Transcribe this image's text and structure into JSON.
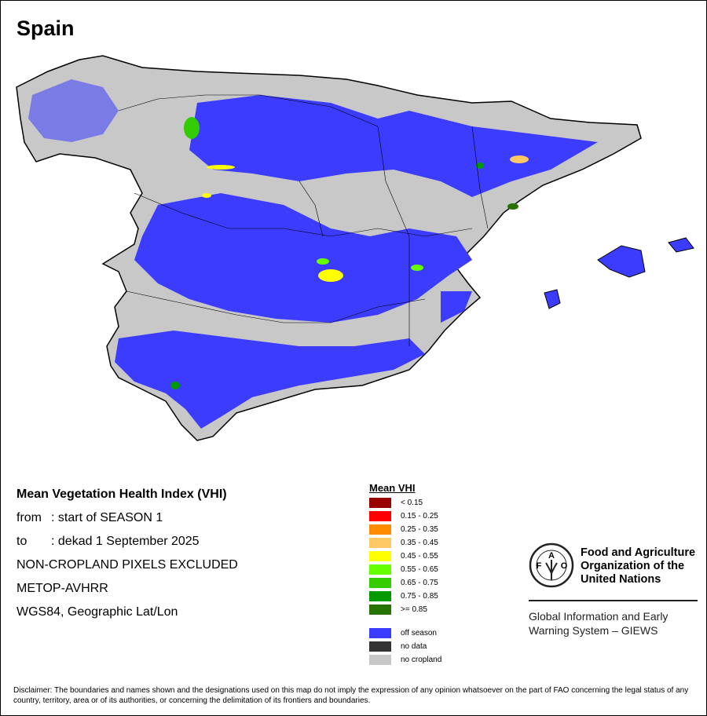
{
  "title": "Spain",
  "info": {
    "heading": "Mean Vegetation Health Index (VHI)",
    "from_label": "from",
    "from_value": ": start of SEASON 1",
    "to_label": "to",
    "to_value": ": dekad 1 September 2025",
    "exclusion": "NON-CROPLAND PIXELS EXCLUDED",
    "sensor": "METOP-AVHRR",
    "projection": "WGS84, Geographic Lat/Lon"
  },
  "legend": {
    "title": "Mean VHI",
    "classes": [
      {
        "label": "< 0.15",
        "color": "#990000"
      },
      {
        "label": "0.15 - 0.25",
        "color": "#ff0000"
      },
      {
        "label": "0.25 - 0.35",
        "color": "#ff8c00"
      },
      {
        "label": "0.35 - 0.45",
        "color": "#ffc864"
      },
      {
        "label": "0.45 - 0.55",
        "color": "#ffff00"
      },
      {
        "label": "0.55 - 0.65",
        "color": "#66ff00"
      },
      {
        "label": "0.65 - 0.75",
        "color": "#33cc00"
      },
      {
        "label": "0.75 - 0.85",
        "color": "#009900"
      },
      {
        "label": ">= 0.85",
        "color": "#267300"
      }
    ],
    "other": [
      {
        "label": "off season",
        "color": "#3c3cff"
      },
      {
        "label": "no data",
        "color": "#333333"
      },
      {
        "label": "no cropland",
        "color": "#c8c8c8"
      }
    ]
  },
  "logo": {
    "org_line1": "Food and Agriculture",
    "org_line2": "Organization of the",
    "org_line3": "United Nations",
    "emblem_text": "FAO FIAT PANIS"
  },
  "giews": {
    "line1": "Global Information and Early",
    "line2": "Warning System – GIEWS"
  },
  "disclaimer": "Disclaimer: The boundaries and names shown and the designations used on this map do not imply the expression of any opinion whatsoever on the part of FAO concerning the legal status of any country, territory, area or of its authorities, or concerning the delimitation of its frontiers and boundaries."
}
